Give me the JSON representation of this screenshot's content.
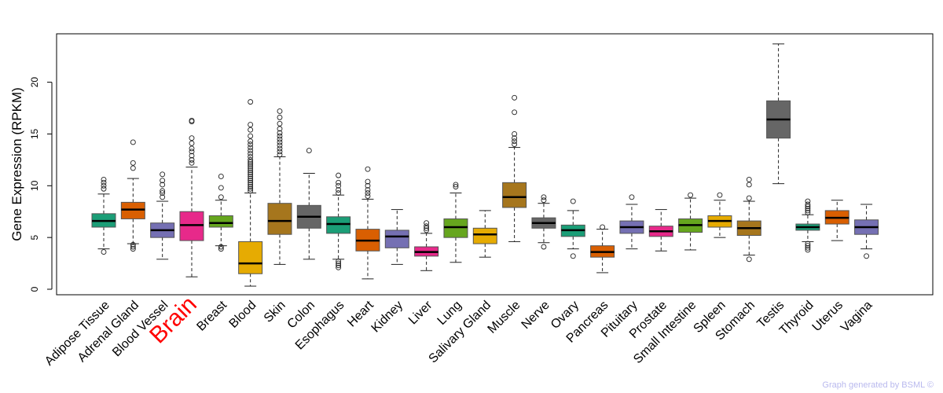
{
  "chart_data": {
    "type": "boxplot",
    "ylabel": "Gene Expression (RPKM)",
    "ylim": [
      -0.7,
      24.5
    ],
    "yticks": [
      0,
      5,
      10,
      15,
      20
    ],
    "highlight": "Brain",
    "highlight_color": "#ff0000",
    "box_edge_color": "#555555",
    "median_color": "#000000",
    "categories": [
      {
        "name": "Adipose Tissue",
        "color": "#1b9e77",
        "whisker_low": 3.9,
        "q1": 6.0,
        "median": 6.6,
        "q3": 7.3,
        "whisker_high": 9.2,
        "outliers": [
          3.6,
          9.7,
          10.0,
          10.3,
          10.6
        ]
      },
      {
        "name": "Adrenal Gland",
        "color": "#d95f02",
        "whisker_low": 4.4,
        "q1": 6.8,
        "median": 7.7,
        "q3": 8.4,
        "whisker_high": 10.7,
        "outliers": [
          3.9,
          4.1,
          4.3,
          11.7,
          12.2,
          14.2
        ]
      },
      {
        "name": "Blood Vessel",
        "color": "#7570b3",
        "whisker_low": 2.9,
        "q1": 5.0,
        "median": 5.7,
        "q3": 6.4,
        "whisker_high": 8.5,
        "outliers": [
          8.9,
          9.3,
          9.5,
          10.1,
          10.5,
          11.1
        ]
      },
      {
        "name": "Brain",
        "color": "#e7298a",
        "whisker_low": 1.2,
        "q1": 4.7,
        "median": 6.2,
        "q3": 7.5,
        "whisker_high": 11.8,
        "outliers": [
          12.2,
          12.5,
          12.9,
          13.3,
          13.6,
          14.1,
          14.6,
          16.2,
          16.3
        ]
      },
      {
        "name": "Breast",
        "color": "#66a61e",
        "whisker_low": 4.2,
        "q1": 6.0,
        "median": 6.4,
        "q3": 7.1,
        "whisker_high": 8.6,
        "outliers": [
          3.9,
          4.1,
          8.9,
          9.8,
          10.9
        ]
      },
      {
        "name": "Blood",
        "color": "#e6ab02",
        "whisker_low": 0.3,
        "q1": 1.5,
        "median": 2.5,
        "q3": 4.6,
        "whisker_high": 9.3,
        "outliers": [
          9.5,
          9.7,
          9.9,
          10.1,
          10.3,
          10.5,
          10.7,
          10.9,
          11.1,
          11.3,
          11.5,
          11.7,
          11.9,
          12.1,
          12.3,
          12.5,
          12.8,
          13.1,
          13.4,
          13.7,
          14.0,
          14.3,
          14.8,
          15.4,
          15.9,
          18.1
        ]
      },
      {
        "name": "Skin",
        "color": "#a6761d",
        "whisker_low": 2.4,
        "q1": 5.3,
        "median": 6.6,
        "q3": 8.3,
        "whisker_high": 12.8,
        "outliers": [
          13.0,
          13.3,
          13.6,
          13.9,
          14.2,
          14.5,
          14.8,
          15.1,
          15.5,
          16.0,
          16.6,
          17.2
        ]
      },
      {
        "name": "Colon",
        "color": "#666666",
        "whisker_low": 2.9,
        "q1": 5.9,
        "median": 7.0,
        "q3": 8.1,
        "whisker_high": 11.2,
        "outliers": [
          13.4
        ]
      },
      {
        "name": "Esophagus",
        "color": "#1b9e77",
        "whisker_low": 2.9,
        "q1": 5.4,
        "median": 6.3,
        "q3": 7.0,
        "whisker_high": 9.1,
        "outliers": [
          2.1,
          2.3,
          2.5,
          2.7,
          9.3,
          9.6,
          10.0,
          10.3,
          11.0
        ]
      },
      {
        "name": "Heart",
        "color": "#d95f02",
        "whisker_low": 1.0,
        "q1": 3.7,
        "median": 4.7,
        "q3": 5.8,
        "whisker_high": 8.7,
        "outliers": [
          9.0,
          9.3,
          9.6,
          10.0,
          10.4,
          11.6
        ]
      },
      {
        "name": "Kidney",
        "color": "#7570b3",
        "whisker_low": 2.4,
        "q1": 4.0,
        "median": 5.1,
        "q3": 5.7,
        "whisker_high": 7.7,
        "outliers": []
      },
      {
        "name": "Liver",
        "color": "#e7298a",
        "whisker_low": 1.8,
        "q1": 3.2,
        "median": 3.6,
        "q3": 4.1,
        "whisker_high": 5.4,
        "outliers": [
          5.7,
          5.9,
          6.1,
          6.4
        ]
      },
      {
        "name": "Lung",
        "color": "#66a61e",
        "whisker_low": 2.6,
        "q1": 5.0,
        "median": 6.0,
        "q3": 6.8,
        "whisker_high": 9.3,
        "outliers": [
          9.9,
          10.1
        ]
      },
      {
        "name": "Salivary Gland",
        "color": "#e6ab02",
        "whisker_low": 3.1,
        "q1": 4.4,
        "median": 5.3,
        "q3": 5.9,
        "whisker_high": 7.6,
        "outliers": []
      },
      {
        "name": "Muscle",
        "color": "#a6761d",
        "whisker_low": 4.6,
        "q1": 7.9,
        "median": 8.9,
        "q3": 10.3,
        "whisker_high": 13.7,
        "outliers": [
          14.0,
          14.3,
          14.6,
          15.0,
          17.1,
          18.5
        ]
      },
      {
        "name": "Nerve",
        "color": "#666666",
        "whisker_low": 4.5,
        "q1": 5.9,
        "median": 6.4,
        "q3": 6.9,
        "whisker_high": 8.3,
        "outliers": [
          4.1,
          8.6,
          8.9
        ]
      },
      {
        "name": "Ovary",
        "color": "#1b9e77",
        "whisker_low": 3.9,
        "q1": 5.1,
        "median": 5.7,
        "q3": 6.2,
        "whisker_high": 7.6,
        "outliers": [
          3.2,
          8.5
        ]
      },
      {
        "name": "Pancreas",
        "color": "#d95f02",
        "whisker_low": 1.6,
        "q1": 3.1,
        "median": 3.6,
        "q3": 4.2,
        "whisker_high": 5.8,
        "outliers": [
          6.0
        ]
      },
      {
        "name": "Pituitary",
        "color": "#7570b3",
        "whisker_low": 3.9,
        "q1": 5.4,
        "median": 6.0,
        "q3": 6.6,
        "whisker_high": 8.2,
        "outliers": [
          8.9
        ]
      },
      {
        "name": "Prostate",
        "color": "#e7298a",
        "whisker_low": 3.7,
        "q1": 5.1,
        "median": 5.6,
        "q3": 6.1,
        "whisker_high": 7.7,
        "outliers": []
      },
      {
        "name": "Small Intestine",
        "color": "#66a61e",
        "whisker_low": 3.8,
        "q1": 5.5,
        "median": 6.2,
        "q3": 6.8,
        "whisker_high": 8.8,
        "outliers": [
          9.1
        ]
      },
      {
        "name": "Spleen",
        "color": "#e6ab02",
        "whisker_low": 5.0,
        "q1": 6.0,
        "median": 6.6,
        "q3": 7.1,
        "whisker_high": 8.6,
        "outliers": [
          9.1
        ]
      },
      {
        "name": "Stomach",
        "color": "#a6761d",
        "whisker_low": 3.3,
        "q1": 5.2,
        "median": 5.9,
        "q3": 6.6,
        "whisker_high": 8.5,
        "outliers": [
          2.9,
          8.8,
          10.1,
          10.6
        ]
      },
      {
        "name": "Testis",
        "color": "#666666",
        "whisker_low": 10.2,
        "q1": 14.6,
        "median": 16.4,
        "q3": 18.2,
        "whisker_high": 23.7,
        "outliers": []
      },
      {
        "name": "Thyroid",
        "color": "#1b9e77",
        "whisker_low": 4.6,
        "q1": 5.7,
        "median": 6.0,
        "q3": 6.3,
        "whisker_high": 7.2,
        "outliers": [
          3.8,
          4.0,
          4.2,
          4.4,
          7.4,
          7.6,
          7.8,
          8.0,
          8.2,
          8.5
        ]
      },
      {
        "name": "Uterus",
        "color": "#d95f02",
        "whisker_low": 4.7,
        "q1": 6.3,
        "median": 6.9,
        "q3": 7.6,
        "whisker_high": 8.6,
        "outliers": []
      },
      {
        "name": "Vagina",
        "color": "#7570b3",
        "whisker_low": 3.9,
        "q1": 5.3,
        "median": 6.0,
        "q3": 6.7,
        "whisker_high": 8.2,
        "outliers": [
          3.2
        ]
      }
    ]
  },
  "footer": {
    "credit": "Graph generated by BSML ©"
  }
}
